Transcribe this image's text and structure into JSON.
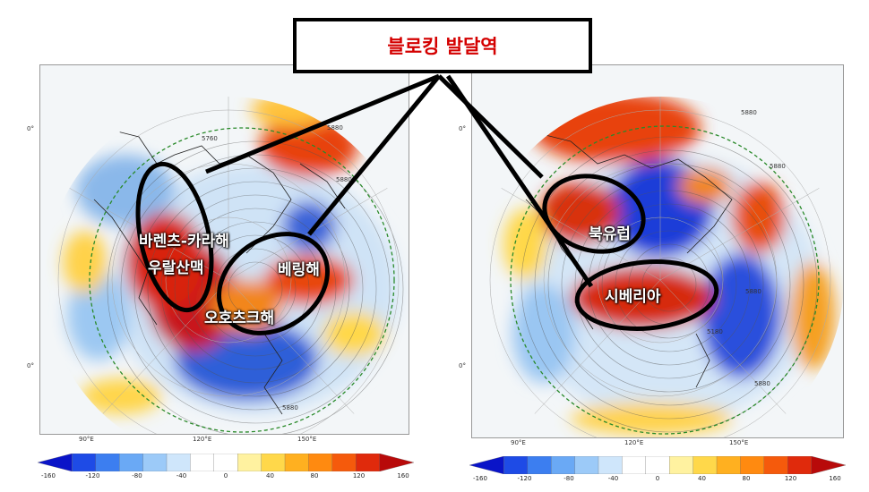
{
  "title": "블로킹 발달역",
  "left_map": {
    "labels": [
      "바렌츠-카라해",
      "우랄산맥",
      "베링해",
      "오호츠크해"
    ],
    "contours": [
      "5760",
      "5880",
      "5880",
      "5880"
    ],
    "lon_ticks": [
      "90°E",
      "120°E",
      "150°E"
    ],
    "lat_ticks": [
      "0°",
      "0°"
    ]
  },
  "right_map": {
    "labels": [
      "북유럽",
      "시베리아"
    ],
    "contours": [
      "5880",
      "5880",
      "5880",
      "5180",
      "5880"
    ],
    "lon_ticks": [
      "90°E",
      "120°E",
      "150°E"
    ],
    "lat_ticks": [
      "0°",
      "0°"
    ]
  },
  "colorbar": {
    "ticks": [
      "-160",
      "-120",
      "-80",
      "-40",
      "0",
      "40",
      "80",
      "120",
      "160"
    ],
    "colors": [
      "#0a14c8",
      "#1e4be6",
      "#3c7ef0",
      "#6aa9f5",
      "#9ccaf8",
      "#cfe6fb",
      "#ffffff",
      "#ffffff",
      "#fff2a0",
      "#ffd84a",
      "#ffb020",
      "#ff8a10",
      "#f55a0c",
      "#e02a0c",
      "#b80a0a"
    ]
  }
}
